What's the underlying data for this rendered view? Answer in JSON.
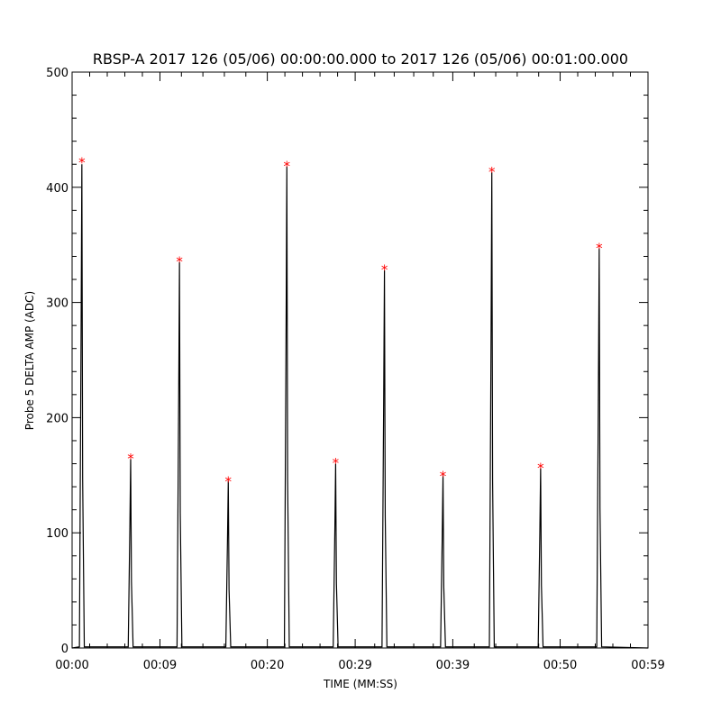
{
  "chart_data": {
    "type": "line",
    "title": "RBSP-A 2017 126 (05/06) 00:00:00.000 to 2017 126 (05/06) 00:01:00.000",
    "xlabel": "TIME (MM:SS)",
    "ylabel": "Probe 5 DELTA AMP (ADC)",
    "xlim": [
      "00:00",
      "00:59"
    ],
    "ylim": [
      0,
      500
    ],
    "xticks": [
      "00:00",
      "00:09",
      "00:20",
      "00:29",
      "00:39",
      "00:50",
      "00:59"
    ],
    "yticks": [
      0,
      100,
      200,
      300,
      400,
      500
    ],
    "grid": false,
    "series": [
      {
        "color": "#000000",
        "x": [
          "00:00",
          "00:01",
          "00:06",
          "00:11",
          "00:16",
          "00:22",
          "00:27",
          "00:32",
          "00:38",
          "00:43",
          "00:48",
          "00:54",
          "00:59"
        ],
        "y": [
          0,
          420,
          164,
          335,
          145,
          418,
          160,
          328,
          150,
          413,
          156,
          347,
          0
        ]
      }
    ],
    "peak_markers": {
      "symbol": "*",
      "color": "#ff0000",
      "x": [
        "00:01",
        "00:06",
        "00:11",
        "00:16",
        "00:22",
        "00:27",
        "00:32",
        "00:38",
        "00:43",
        "00:48",
        "00:54"
      ],
      "y": [
        422,
        165,
        336,
        145,
        419,
        161,
        329,
        150,
        414,
        157,
        348
      ]
    }
  }
}
